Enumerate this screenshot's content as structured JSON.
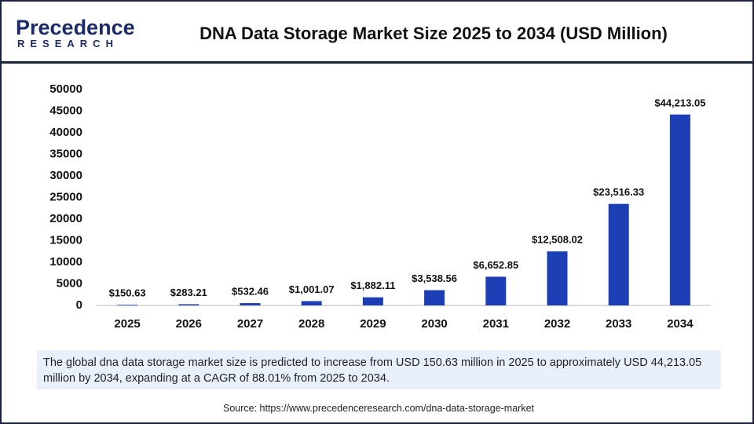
{
  "logo": {
    "name": "Precedence",
    "tagline": "RESEARCH"
  },
  "chart_data": {
    "type": "bar",
    "title": "DNA Data Storage Market Size 2025 to 2034 (USD Million)",
    "categories": [
      "2025",
      "2026",
      "2027",
      "2028",
      "2029",
      "2030",
      "2031",
      "2032",
      "2033",
      "2034"
    ],
    "values": [
      150.63,
      283.21,
      532.46,
      1001.07,
      1882.11,
      3538.56,
      6652.85,
      12508.02,
      23516.33,
      44213.05
    ],
    "value_labels": [
      "$150.63",
      "$283.21",
      "$532.46",
      "$1,001.07",
      "$1,882.11",
      "$3,538.56",
      "$6,652.85",
      "$12,508.02",
      "$23,516.33",
      "$44,213.05"
    ],
    "color": "#1c3fb5",
    "ylim": [
      0,
      50000
    ],
    "yticks": [
      0,
      5000,
      10000,
      15000,
      20000,
      25000,
      30000,
      35000,
      40000,
      45000,
      50000
    ],
    "grid": false
  },
  "description": "The global dna data storage market size is predicted to increase from USD 150.63 million in 2025 to approximately USD 44,213.05 million by 2034, expanding at a CAGR of 88.01% from 2025 to 2034.",
  "source": "Source: https://www.precedenceresearch.com/dna-data-storage-market"
}
